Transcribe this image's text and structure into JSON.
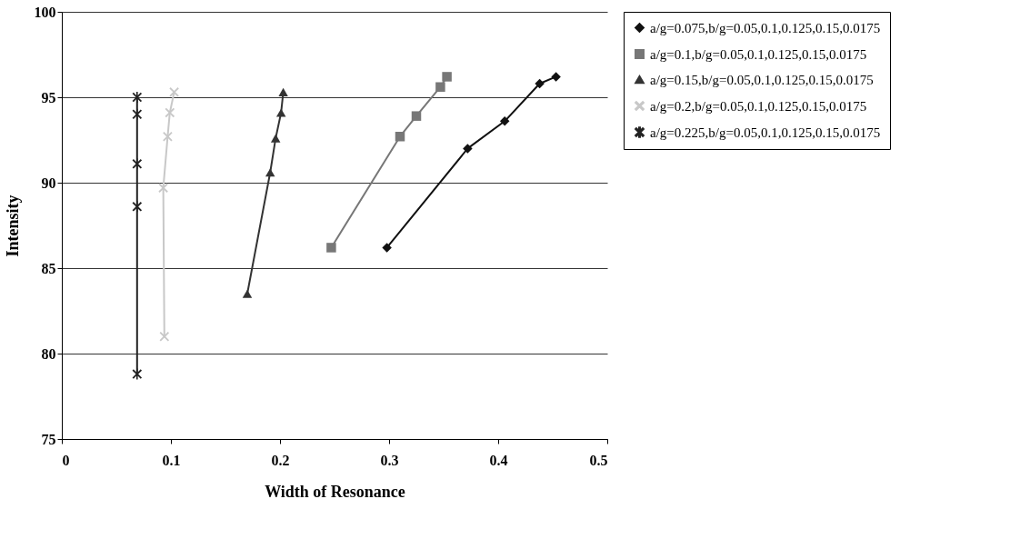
{
  "chart_data": {
    "type": "line",
    "xlabel": "Width of Resonance",
    "ylabel": "Intensity",
    "xlim": [
      0,
      0.5
    ],
    "xticks": [
      0,
      0.1,
      0.2,
      0.3,
      0.4,
      0.5
    ],
    "ylim": [
      75,
      100
    ],
    "yticks": [
      75,
      80,
      85,
      90,
      95,
      100
    ],
    "grid": "y",
    "legend": "right",
    "line_style": "solid",
    "series": [
      {
        "name": "a/g=0.075,b/g=0.05,0.1,0.125,0.15,0.0175",
        "color": "#111111",
        "marker": "diamond",
        "x": [
          0.298,
          0.372,
          0.406,
          0.438,
          0.453
        ],
        "values": [
          86.2,
          92.0,
          93.6,
          95.8,
          96.2
        ]
      },
      {
        "name": "a/g=0.1,b/g=0.05,0.1,0.125,0.15,0.0175",
        "color": "#777777",
        "marker": "square",
        "x": [
          0.247,
          0.31,
          0.325,
          0.347,
          0.353
        ],
        "values": [
          86.2,
          92.7,
          93.9,
          95.6,
          96.2
        ]
      },
      {
        "name": "a/g=0.15,b/g=0.05,0.1,0.125,0.15,0.0175",
        "color": "#333333",
        "marker": "triangle",
        "x": [
          0.17,
          0.191,
          0.196,
          0.201,
          0.203
        ],
        "values": [
          83.5,
          90.6,
          92.6,
          94.1,
          95.3
        ]
      },
      {
        "name": "a/g=0.2,b/g=0.05,0.1,0.125,0.15,0.0175",
        "color": "#c8c8c8",
        "marker": "cross",
        "x": [
          0.094,
          0.093,
          0.097,
          0.099,
          0.103
        ],
        "values": [
          81.0,
          89.7,
          92.7,
          94.1,
          95.3
        ]
      },
      {
        "name": "a/g=0.225,b/g=0.05,0.1,0.125,0.15,0.0175",
        "color": "#222222",
        "marker": "star",
        "x": [
          0.069,
          0.069,
          0.069,
          0.069,
          0.069
        ],
        "values": [
          78.8,
          88.6,
          91.1,
          94.0,
          95.0
        ]
      }
    ]
  }
}
